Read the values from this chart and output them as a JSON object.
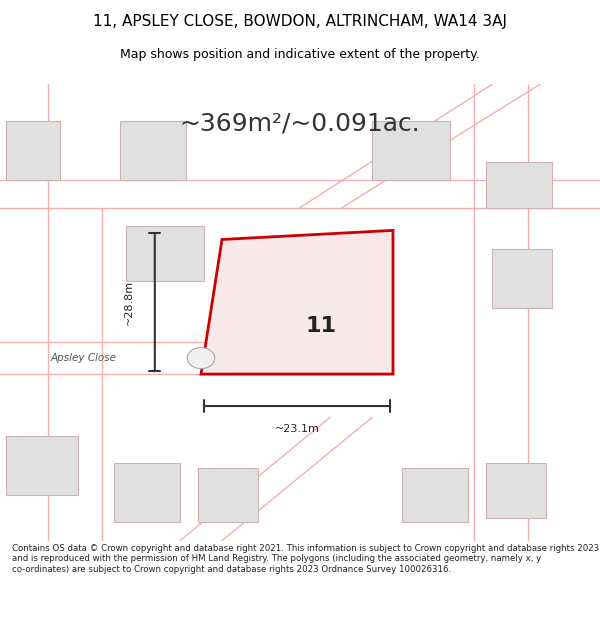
{
  "title_line1": "11, APSLEY CLOSE, BOWDON, ALTRINCHAM, WA14 3AJ",
  "title_line2": "Map shows position and indicative extent of the property.",
  "area_text": "~369m²/~0.091ac.",
  "footer_text": "Contains OS data © Crown copyright and database right 2021. This information is subject to Crown copyright and database rights 2023 and is reproduced with the permission of HM Land Registry. The polygons (including the associated geometry, namely x, y co-ordinates) are subject to Crown copyright and database rights 2023 Ordnance Survey 100026316.",
  "plot_label": "11",
  "dim_h": "~28.8m",
  "dim_w": "~23.1m",
  "street_label": "Apsley Close",
  "bg_color": "#ffffff",
  "road_line_color": "#f0b0b0",
  "building_fill": "#e0e0e0",
  "building_ec": "#d0b0b0",
  "plot_outline": "#cc0000",
  "plot_fill": "#f9e8e8",
  "dim_line_color": "#333333"
}
